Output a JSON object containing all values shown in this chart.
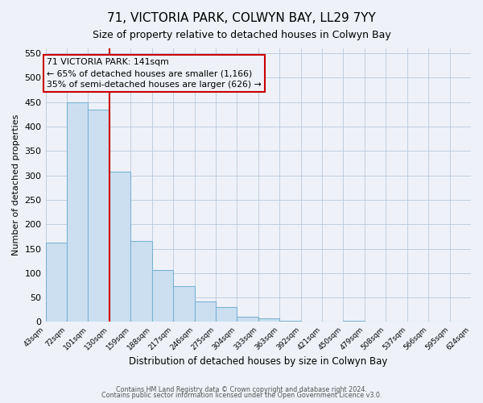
{
  "title": "71, VICTORIA PARK, COLWYN BAY, LL29 7YY",
  "subtitle": "Size of property relative to detached houses in Colwyn Bay",
  "xlabel": "Distribution of detached houses by size in Colwyn Bay",
  "ylabel": "Number of detached properties",
  "bar_values": [
    162,
    450,
    435,
    308,
    165,
    107,
    74,
    42,
    30,
    10,
    7,
    3,
    1,
    0,
    2,
    1,
    0,
    0,
    0,
    0
  ],
  "all_labels": [
    "43sqm",
    "72sqm",
    "101sqm",
    "130sqm",
    "159sqm",
    "188sqm",
    "217sqm",
    "246sqm",
    "275sqm",
    "304sqm",
    "333sqm",
    "363sqm",
    "392sqm",
    "421sqm",
    "450sqm",
    "479sqm",
    "508sqm",
    "537sqm",
    "566sqm",
    "595sqm",
    "624sqm"
  ],
  "bar_color": "#ccdff0",
  "bar_edge_color": "#7ab3d4",
  "vline_x": 3,
  "vline_color": "#cc0000",
  "annotation_title": "71 VICTORIA PARK: 141sqm",
  "annotation_line1": "← 65% of detached houses are smaller (1,166)",
  "annotation_line2": "35% of semi-detached houses are larger (626) →",
  "annotation_box_color": "#cc0000",
  "ylim": [
    0,
    560
  ],
  "yticks": [
    0,
    50,
    100,
    150,
    200,
    250,
    300,
    350,
    400,
    450,
    500,
    550
  ],
  "footer1": "Contains HM Land Registry data © Crown copyright and database right 2024.",
  "footer2": "Contains public sector information licensed under the Open Government Licence v3.0.",
  "background_color": "#eef2f8",
  "grid_color": "#b8c8dc"
}
